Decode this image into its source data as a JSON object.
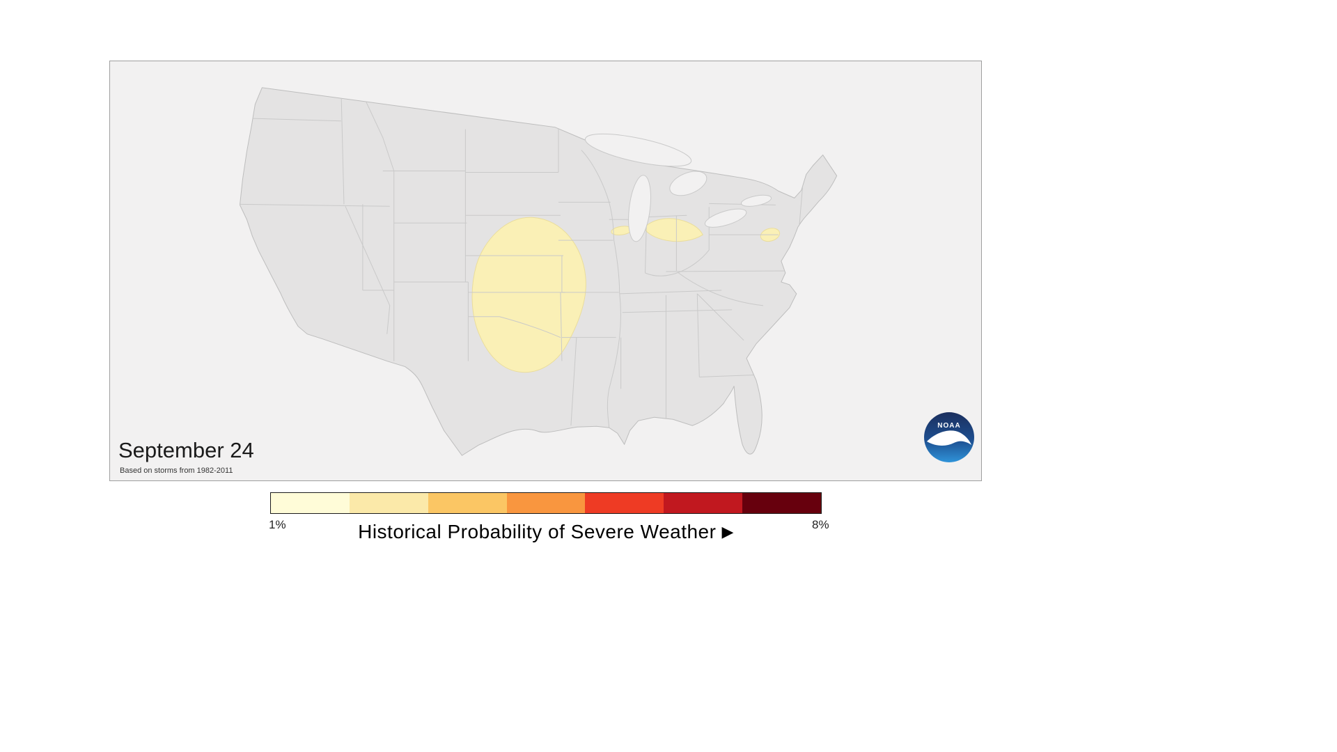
{
  "map": {
    "date_label": "September 24",
    "source_note": "Based on storms from 1982-2011",
    "colors": {
      "ocean": "#f2f1f1",
      "land": "#e4e3e3",
      "state_border": "#c9c9c9",
      "country_outline": "#bdbdbd",
      "frame_border": "#9e9e9e",
      "contour_fill": "#faf0b6",
      "contour_stroke": "#eadd9c"
    },
    "contours": [
      {
        "region": "central-plains",
        "level": "1%"
      },
      {
        "region": "southern-wisconsin",
        "level": "1%"
      },
      {
        "region": "lower-michigan-ohio",
        "level": "1%"
      },
      {
        "region": "mid-atlantic",
        "level": "1%"
      }
    ]
  },
  "legend": {
    "min_label": "1%",
    "max_label": "8%",
    "title": "Historical Probability of Severe Weather",
    "arrow": "▶",
    "colors": [
      "#fffcd8",
      "#fbe9a9",
      "#fbc664",
      "#f9963f",
      "#ee3b24",
      "#c1181f",
      "#67000d"
    ],
    "border_color": "#1a1a1a"
  },
  "logo": {
    "label": "NOAA",
    "navy": "#1c2f5e",
    "mid_blue": "#1d4e8f",
    "light_blue": "#2f93d9"
  }
}
